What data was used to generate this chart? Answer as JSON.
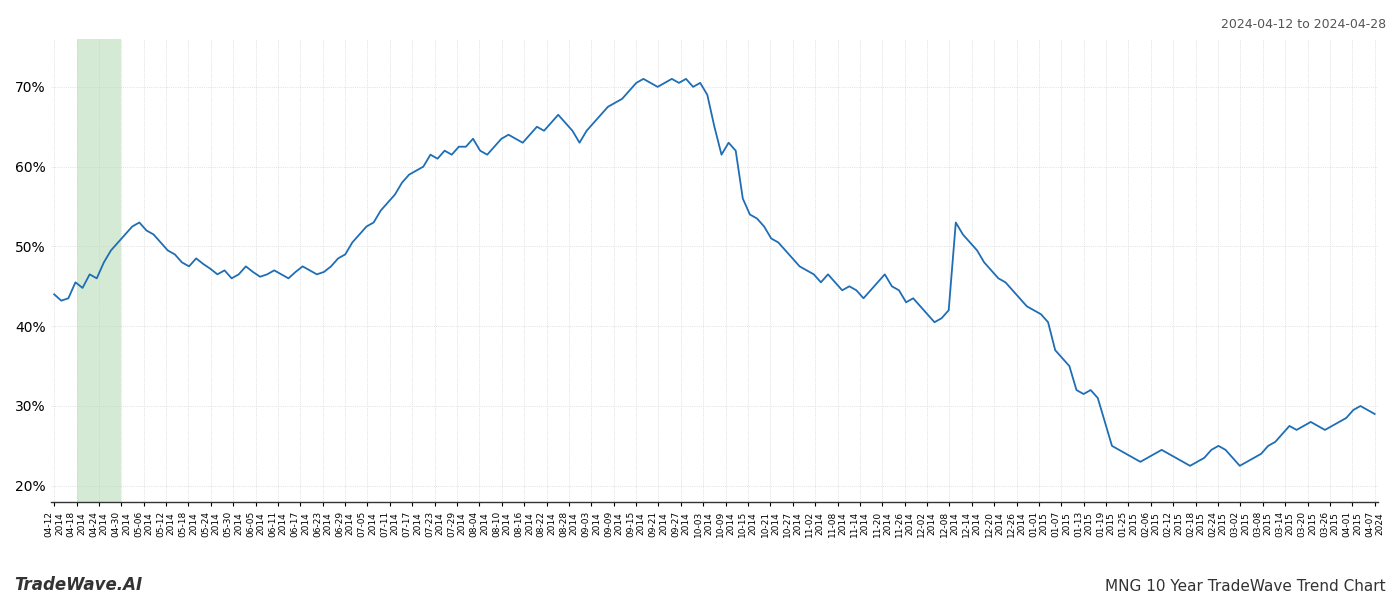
{
  "title_top_right": "2024-04-12 to 2024-04-28",
  "title_bottom_right": "MNG 10 Year TradeWave Trend Chart",
  "title_bottom_left": "TradeWave.AI",
  "line_color": "#1f6eb5",
  "line_width": 1.3,
  "background_color": "#ffffff",
  "grid_color": "#cccccc",
  "highlight_color": "#d4ead4",
  "ylim": [
    18,
    76
  ],
  "yticks": [
    20,
    30,
    40,
    50,
    60,
    70
  ],
  "ytick_labels": [
    "20%",
    "30%",
    "40%",
    "50%",
    "60%",
    "70%"
  ],
  "x_labels": [
    "04-12",
    "04-18",
    "04-24",
    "04-30",
    "05-06",
    "05-12",
    "05-18",
    "05-24",
    "05-30",
    "06-05",
    "06-11",
    "06-17",
    "06-23",
    "06-29",
    "07-05",
    "07-11",
    "07-17",
    "07-23",
    "07-29",
    "08-04",
    "08-10",
    "08-16",
    "08-22",
    "08-28",
    "09-03",
    "09-09",
    "09-15",
    "09-21",
    "09-27",
    "10-03",
    "10-09",
    "10-15",
    "10-21",
    "10-27",
    "11-02",
    "11-08",
    "11-14",
    "11-20",
    "11-26",
    "12-02",
    "12-08",
    "12-14",
    "12-20",
    "12-26",
    "01-01",
    "01-07",
    "01-13",
    "01-19",
    "01-25",
    "02-06",
    "02-12",
    "02-18",
    "02-24",
    "03-02",
    "03-08",
    "03-14",
    "03-20",
    "03-26",
    "04-01",
    "04-07"
  ],
  "x_years": [
    2014,
    2014,
    2014,
    2014,
    2014,
    2014,
    2014,
    2014,
    2014,
    2014,
    2014,
    2014,
    2014,
    2014,
    2014,
    2014,
    2014,
    2014,
    2014,
    2014,
    2014,
    2014,
    2014,
    2014,
    2014,
    2014,
    2014,
    2014,
    2014,
    2014,
    2014,
    2014,
    2014,
    2014,
    2014,
    2014,
    2014,
    2014,
    2014,
    2014,
    2014,
    2014,
    2014,
    2014,
    2015,
    2015,
    2015,
    2015,
    2015,
    2015,
    2015,
    2015,
    2015,
    2015,
    2015,
    2015,
    2015,
    2015,
    2015,
    2024
  ],
  "values": [
    44.0,
    43.2,
    43.5,
    45.5,
    44.8,
    46.5,
    46.0,
    48.0,
    49.5,
    50.5,
    51.5,
    52.5,
    53.0,
    52.0,
    51.5,
    50.5,
    49.5,
    49.0,
    48.0,
    47.5,
    48.5,
    47.8,
    47.2,
    46.5,
    47.0,
    46.0,
    46.5,
    47.5,
    46.8,
    46.2,
    46.5,
    47.0,
    46.5,
    46.0,
    46.8,
    47.5,
    47.0,
    46.5,
    46.8,
    47.5,
    48.5,
    49.0,
    50.5,
    51.5,
    52.5,
    53.0,
    54.5,
    55.5,
    56.5,
    58.0,
    59.0,
    59.5,
    60.0,
    61.5,
    61.0,
    62.0,
    61.5,
    62.5,
    62.5,
    63.5,
    62.0,
    61.5,
    62.5,
    63.5,
    64.0,
    63.5,
    63.0,
    64.0,
    65.0,
    64.5,
    65.5,
    66.5,
    65.5,
    64.5,
    63.0,
    64.5,
    65.5,
    66.5,
    67.5,
    68.0,
    68.5,
    69.5,
    70.5,
    71.0,
    70.5,
    70.0,
    70.5,
    71.0,
    70.5,
    71.0,
    70.0,
    70.5,
    69.0,
    65.0,
    61.5,
    63.0,
    62.0,
    56.0,
    54.0,
    53.5,
    52.5,
    51.0,
    50.5,
    49.5,
    48.5,
    47.5,
    47.0,
    46.5,
    45.5,
    46.5,
    45.5,
    44.5,
    45.0,
    44.5,
    43.5,
    44.5,
    45.5,
    46.5,
    45.0,
    44.5,
    43.0,
    43.5,
    42.5,
    41.5,
    40.5,
    41.0,
    42.0,
    53.0,
    51.5,
    50.5,
    49.5,
    48.0,
    47.0,
    46.0,
    45.5,
    44.5,
    43.5,
    42.5,
    42.0,
    41.5,
    40.5,
    37.0,
    36.0,
    35.0,
    32.0,
    31.5,
    32.0,
    31.0,
    28.0,
    25.0,
    24.5,
    24.0,
    23.5,
    23.0,
    23.5,
    24.0,
    24.5,
    24.0,
    23.5,
    23.0,
    22.5,
    23.0,
    23.5,
    24.5,
    25.0,
    24.5,
    23.5,
    22.5,
    23.0,
    23.5,
    24.0,
    25.0,
    25.5,
    26.5,
    27.5,
    27.0,
    27.5,
    28.0,
    27.5,
    27.0,
    27.5,
    28.0,
    28.5,
    29.5,
    30.0,
    29.5,
    29.0
  ]
}
